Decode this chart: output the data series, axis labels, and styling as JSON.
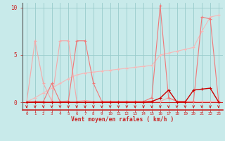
{
  "bg_color": "#c8eaea",
  "grid_color": "#99cccc",
  "xlabel": "Vent moyen/en rafales ( km/h )",
  "x_values": [
    0,
    1,
    2,
    3,
    4,
    5,
    6,
    7,
    8,
    9,
    10,
    11,
    12,
    13,
    14,
    15,
    16,
    17,
    18,
    19,
    20,
    21,
    22,
    23
  ],
  "ylim": [
    -0.8,
    10.5
  ],
  "xlim": [
    -0.5,
    23.5
  ],
  "s1_y": [
    0.05,
    6.5,
    2.0,
    0.15,
    6.5,
    6.5,
    0.1,
    0.2,
    0.1,
    0.1,
    0.1,
    0.1,
    0.1,
    0.1,
    0.1,
    0.15,
    0.1,
    0.5,
    0.1,
    0.1,
    0.1,
    0.1,
    0.1,
    0.1
  ],
  "s2_y": [
    0.05,
    0.1,
    0.1,
    2.0,
    0.1,
    0.15,
    6.5,
    6.5,
    2.0,
    0.1,
    0.1,
    0.1,
    0.1,
    0.1,
    0.1,
    0.5,
    10.2,
    0.5,
    0.1,
    0.1,
    0.1,
    9.0,
    8.8,
    0.1
  ],
  "s3_y": [
    0.02,
    0.02,
    0.02,
    0.02,
    0.02,
    0.02,
    0.02,
    0.02,
    0.02,
    0.02,
    0.02,
    0.02,
    0.02,
    0.02,
    0.02,
    0.1,
    0.45,
    1.3,
    0.05,
    0.05,
    1.3,
    1.4,
    1.5,
    0.05
  ],
  "s_trend_y": [
    0.05,
    0.5,
    1.0,
    1.5,
    2.0,
    2.5,
    2.9,
    3.1,
    3.2,
    3.3,
    3.4,
    3.5,
    3.6,
    3.7,
    3.8,
    3.9,
    5.0,
    5.2,
    5.4,
    5.6,
    5.8,
    7.5,
    9.0,
    9.2
  ],
  "color_s1": "#f5a8a8",
  "color_s2": "#f07878",
  "color_s3": "#cc0000",
  "color_trend": "#f5b8b8",
  "spine_left_color": "#555555",
  "spine_bottom_color": "#cc2222",
  "tick_color": "#cc2222",
  "arrow_color": "#cc2222",
  "hline_color": "#cc2222",
  "yticks": [
    0,
    5,
    10
  ]
}
